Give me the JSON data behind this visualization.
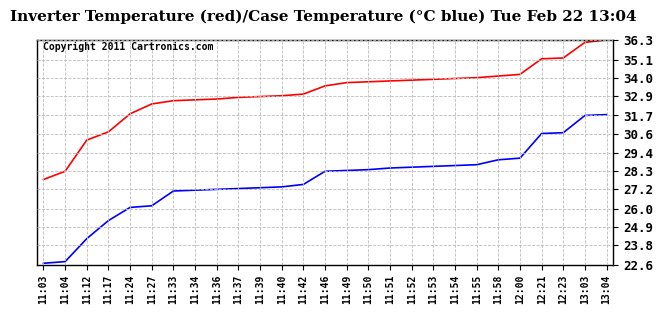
{
  "title": "Inverter Temperature (red)/Case Temperature (°C blue) Tue Feb 22 13:04",
  "copyright": "Copyright 2011 Cartronics.com",
  "yticks": [
    22.6,
    23.8,
    24.9,
    26.0,
    27.2,
    28.3,
    29.4,
    30.6,
    31.7,
    32.9,
    34.0,
    35.1,
    36.3
  ],
  "xtick_labels": [
    "11:03",
    "11:04",
    "11:12",
    "11:17",
    "11:24",
    "11:27",
    "11:33",
    "11:34",
    "11:36",
    "11:37",
    "11:39",
    "11:40",
    "11:42",
    "11:46",
    "11:49",
    "11:50",
    "11:51",
    "11:52",
    "11:53",
    "11:54",
    "11:55",
    "11:58",
    "12:00",
    "12:21",
    "12:23",
    "13:03",
    "13:04"
  ],
  "ylim": [
    22.6,
    36.3
  ],
  "background_color": "#ffffff",
  "plot_bg_color": "#ffffff",
  "grid_color": "#bbbbbb",
  "red_color": "#ff0000",
  "blue_color": "#0000ff",
  "red_data": [
    27.8,
    28.3,
    30.2,
    30.7,
    31.8,
    32.4,
    32.6,
    32.65,
    32.7,
    32.8,
    32.85,
    32.9,
    33.0,
    33.5,
    33.7,
    33.75,
    33.8,
    33.85,
    33.9,
    33.95,
    34.0,
    34.1,
    34.2,
    35.15,
    35.2,
    36.15,
    36.3
  ],
  "blue_data": [
    22.7,
    22.8,
    24.2,
    25.3,
    26.1,
    26.2,
    27.1,
    27.15,
    27.2,
    27.25,
    27.3,
    27.35,
    27.5,
    28.3,
    28.35,
    28.4,
    28.5,
    28.55,
    28.6,
    28.65,
    28.7,
    29.0,
    29.1,
    30.6,
    30.65,
    31.7,
    31.75
  ],
  "title_fontsize": 11,
  "ytick_fontsize": 9,
  "xtick_fontsize": 7,
  "copyright_fontsize": 7
}
